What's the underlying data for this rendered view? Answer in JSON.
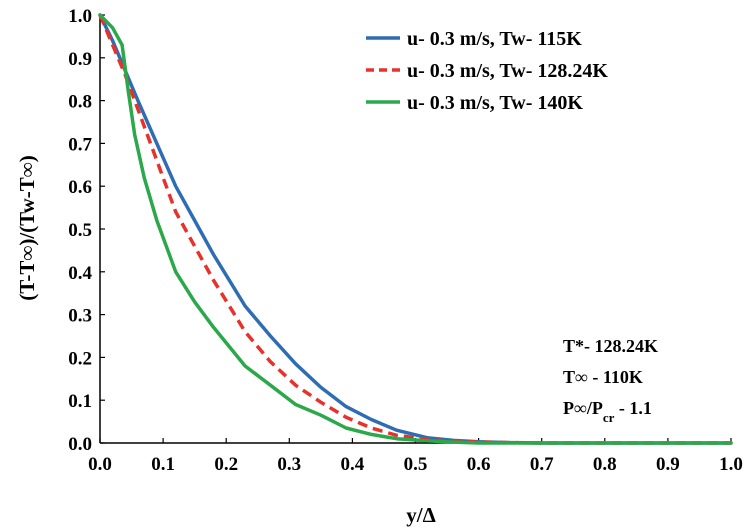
{
  "chart_data": {
    "type": "line",
    "title": "",
    "xlabel": "y/Δ",
    "ylabel": "(T-T∞)/(Tw-T∞)",
    "xlim": [
      0.0,
      1.0
    ],
    "ylim": [
      0.0,
      1.0
    ],
    "x_ticks": [
      "0.0",
      "0.1",
      "0.2",
      "0.3",
      "0.4",
      "0.5",
      "0.6",
      "0.7",
      "0.8",
      "0.9",
      "1.0"
    ],
    "y_ticks": [
      "0.0",
      "0.1",
      "0.2",
      "0.3",
      "0.4",
      "0.5",
      "0.6",
      "0.7",
      "0.8",
      "0.9",
      "1.0"
    ],
    "grid": false,
    "legend_position": "top-right",
    "series": [
      {
        "name": "u- 0.3 m/s, Tw- 115K",
        "color": "#2e6db4",
        "dash": "solid",
        "x": [
          0.0,
          0.02,
          0.04,
          0.06,
          0.09,
          0.12,
          0.15,
          0.18,
          0.23,
          0.27,
          0.31,
          0.35,
          0.39,
          0.43,
          0.47,
          0.52,
          0.56,
          0.6,
          0.65,
          0.7,
          1.0
        ],
        "y": [
          1.0,
          0.94,
          0.87,
          0.8,
          0.7,
          0.6,
          0.52,
          0.44,
          0.32,
          0.25,
          0.185,
          0.13,
          0.085,
          0.055,
          0.03,
          0.012,
          0.006,
          0.003,
          0.001,
          0.0,
          0.0
        ]
      },
      {
        "name": "u- 0.3 m/s, Tw- 128.24K",
        "color": "#e8312a",
        "dash": "dashed",
        "x": [
          0.0,
          0.02,
          0.04,
          0.06,
          0.09,
          0.12,
          0.15,
          0.18,
          0.23,
          0.27,
          0.31,
          0.35,
          0.39,
          0.43,
          0.47,
          0.52,
          0.56,
          0.6,
          0.65,
          0.7,
          1.0
        ],
        "y": [
          1.0,
          0.93,
          0.86,
          0.78,
          0.66,
          0.54,
          0.46,
          0.38,
          0.26,
          0.19,
          0.135,
          0.095,
          0.06,
          0.035,
          0.018,
          0.008,
          0.004,
          0.002,
          0.001,
          0.0,
          0.0
        ]
      },
      {
        "name": "u- 0.3 m/s, Tw- 140K",
        "color": "#2aa84a",
        "dash": "solid",
        "x": [
          0.0,
          0.02,
          0.035,
          0.045,
          0.055,
          0.07,
          0.09,
          0.12,
          0.15,
          0.18,
          0.23,
          0.27,
          0.31,
          0.35,
          0.39,
          0.43,
          0.47,
          0.52,
          0.56,
          0.6,
          1.0
        ],
        "y": [
          1.0,
          0.97,
          0.93,
          0.82,
          0.72,
          0.62,
          0.52,
          0.4,
          0.33,
          0.27,
          0.18,
          0.135,
          0.09,
          0.065,
          0.035,
          0.02,
          0.01,
          0.005,
          0.002,
          0.0,
          0.0
        ]
      }
    ],
    "annotations": {
      "t_star": "T*- 128.24K",
      "t_inf": "T∞ - 110K",
      "p_ratio": "P∞/Pcr - 1.1"
    }
  }
}
